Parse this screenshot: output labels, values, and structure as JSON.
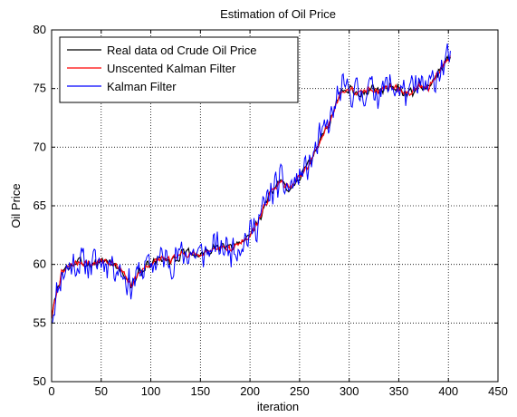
{
  "chart_data": {
    "type": "line",
    "title": "Estimation of Oil Price",
    "xlabel": "iteration",
    "ylabel": "Oil Price",
    "xlim": [
      0,
      450
    ],
    "ylim": [
      50,
      80
    ],
    "xticks": [
      0,
      50,
      100,
      150,
      200,
      250,
      300,
      350,
      400,
      450
    ],
    "yticks": [
      50,
      55,
      60,
      65,
      70,
      75,
      80
    ],
    "grid": true,
    "legend": {
      "placement": "top-left"
    },
    "trend": {
      "x": [
        0,
        5,
        10,
        20,
        30,
        40,
        50,
        60,
        70,
        80,
        90,
        100,
        110,
        120,
        130,
        140,
        150,
        160,
        170,
        180,
        190,
        200,
        210,
        220,
        230,
        240,
        250,
        260,
        270,
        280,
        290,
        300,
        310,
        320,
        330,
        340,
        350,
        360,
        370,
        380,
        390,
        400,
        402
      ],
      "y": [
        55.5,
        57.5,
        59.2,
        60.0,
        60.2,
        60.0,
        60.3,
        60.2,
        59.5,
        58.2,
        59.5,
        60.0,
        60.5,
        60.3,
        60.8,
        61.0,
        60.8,
        61.2,
        61.5,
        61.3,
        61.8,
        62.5,
        64.0,
        66.0,
        67.0,
        66.5,
        67.5,
        68.5,
        70.5,
        72.0,
        74.5,
        75.0,
        74.5,
        75.0,
        74.8,
        75.2,
        75.0,
        74.5,
        75.2,
        75.0,
        76.5,
        77.5,
        77.8
      ]
    },
    "series": [
      {
        "name": "Real data od Crude Oil Price",
        "color": "#000000",
        "noise": 0.5,
        "seed": 3
      },
      {
        "name": "Unscented Kalman Filter",
        "color": "#ff0000",
        "noise": 0.35,
        "seed": 7
      },
      {
        "name": "Kalman Filter",
        "color": "#0000ff",
        "noise": 1.7,
        "seed": 11
      }
    ]
  }
}
